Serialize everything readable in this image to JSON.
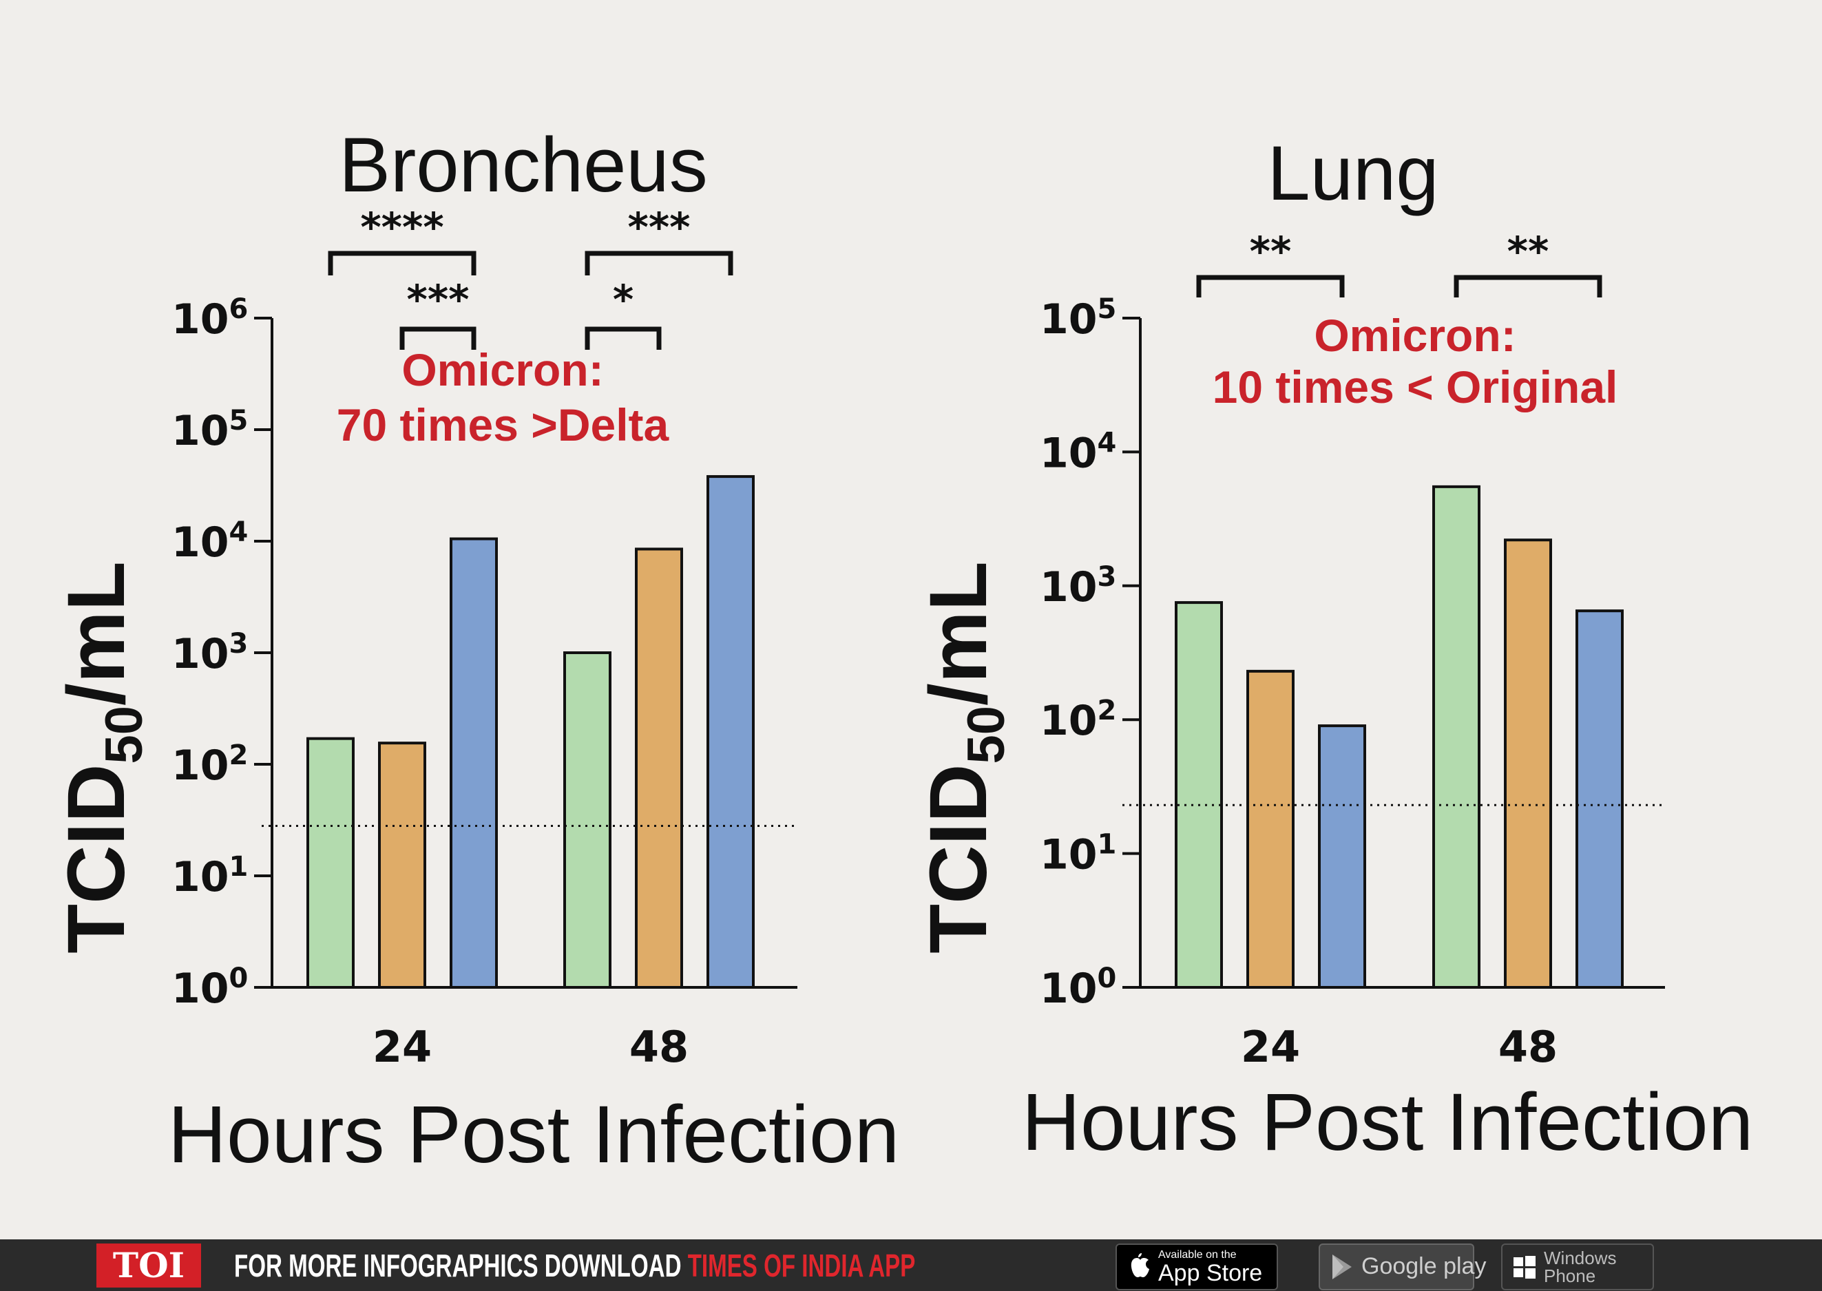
{
  "chart_data": [
    {
      "type": "bar",
      "title": "Broncheus",
      "xlabel": "Hours Post Infection",
      "ylabel": "TCID50/mL",
      "y_scale": "log",
      "ylim": [
        1,
        1000000
      ],
      "yticks": [
        {
          "value": 1,
          "base": "10",
          "exp": "0"
        },
        {
          "value": 10,
          "base": "10",
          "exp": "1"
        },
        {
          "value": 100,
          "base": "10",
          "exp": "2"
        },
        {
          "value": 1000,
          "base": "10",
          "exp": "3"
        },
        {
          "value": 10000,
          "base": "10",
          "exp": "4"
        },
        {
          "value": 100000,
          "base": "10",
          "exp": "5"
        },
        {
          "value": 1000000,
          "base": "10",
          "exp": "6"
        }
      ],
      "categories": [
        "24",
        "48"
      ],
      "series": [
        {
          "color": "#b3dbae",
          "values": [
            170,
            1000
          ]
        },
        {
          "color": "#dfac68",
          "values": [
            155,
            8500
          ]
        },
        {
          "color": "#7e9fd0",
          "values": [
            10500,
            38000
          ]
        }
      ],
      "limit_line": 28,
      "annotation": [
        "Omicron:",
        "70 times >Delta"
      ],
      "significance": [
        {
          "label": "****",
          "category": 0,
          "from": 0,
          "to": 2
        },
        {
          "label": "***",
          "category": 0,
          "from": 1,
          "to": 2
        },
        {
          "label": "***",
          "category": 1,
          "from": 0,
          "to": 2
        },
        {
          "label": "*",
          "category": 1,
          "from": 0,
          "to": 1
        }
      ]
    },
    {
      "type": "bar",
      "title": "Lung",
      "xlabel": "Hours Post Infection",
      "ylabel": "TCID50/mL",
      "y_scale": "log",
      "ylim": [
        1,
        100000
      ],
      "yticks": [
        {
          "value": 1,
          "base": "10",
          "exp": "0"
        },
        {
          "value": 10,
          "base": "10",
          "exp": "1"
        },
        {
          "value": 100,
          "base": "10",
          "exp": "2"
        },
        {
          "value": 1000,
          "base": "10",
          "exp": "3"
        },
        {
          "value": 10000,
          "base": "10",
          "exp": "4"
        },
        {
          "value": 100000,
          "base": "10",
          "exp": "5"
        }
      ],
      "categories": [
        "24",
        "48"
      ],
      "series": [
        {
          "color": "#b3dbae",
          "values": [
            750,
            5500
          ]
        },
        {
          "color": "#dfac68",
          "values": [
            230,
            2200
          ]
        },
        {
          "color": "#7e9fd0",
          "values": [
            90,
            650
          ]
        }
      ],
      "limit_line": 23,
      "annotation": [
        "Omicron:",
        "10 times < Original"
      ],
      "significance": [
        {
          "label": "**",
          "category": 0,
          "from": 0,
          "to": 2
        },
        {
          "label": "**",
          "category": 1,
          "from": 0,
          "to": 2
        }
      ]
    }
  ],
  "colors": {
    "background": "#f0eeeb",
    "annotation_red": "#c9232b",
    "footer_bg": "#2b2b2b",
    "footer_accent": "#e0262d"
  },
  "footer": {
    "logo": "TOI",
    "promo_text": "FOR MORE  INFOGRAPHICS DOWNLOAD ",
    "promo_highlight": "TIMES OF INDIA  APP",
    "app_store": {
      "icon": "apple-icon",
      "small": "Available on the",
      "label": "App Store"
    },
    "google_play": {
      "icon": "play-triangle-icon",
      "small": "",
      "label": "Google play"
    },
    "windows": {
      "icon": "windows-logo-icon",
      "small": "",
      "label": "Windows Phone"
    }
  }
}
